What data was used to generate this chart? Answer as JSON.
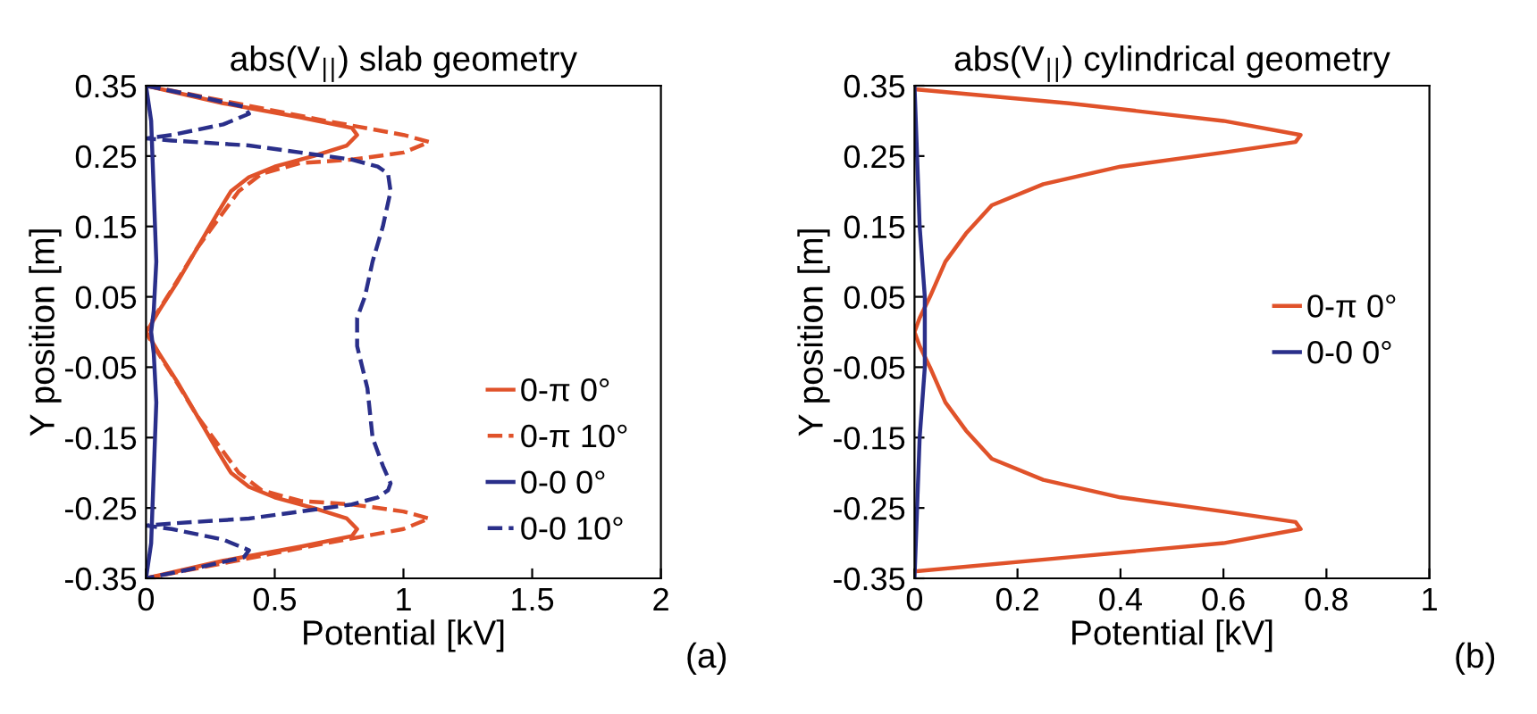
{
  "chart_data": [
    {
      "type": "line",
      "title": "abs(V$_{||}$) slab geometry",
      "xlabel": "Potential [kV]",
      "ylabel": "Y position [m]",
      "annotations": [
        "(a)"
      ],
      "xlim": [
        0,
        2
      ],
      "xticks": [
        0,
        0.5,
        1,
        1.5,
        2
      ],
      "ylim": [
        -0.35,
        0.35
      ],
      "yticks": [
        -0.35,
        -0.25,
        -0.15,
        -0.05,
        0.05,
        0.15,
        0.25,
        0.35
      ],
      "grid": false,
      "legend": "bottom right",
      "series": [
        {
          "name": "0-π 0°",
          "color": "#e0522a",
          "line_style": "solid",
          "x": [
            0,
            0.3,
            0.6,
            0.8,
            0.82,
            0.78,
            0.65,
            0.5,
            0.4,
            0.33,
            0.28,
            0.2,
            0.12,
            0.05,
            0.01,
            0,
            0.01,
            0.05,
            0.12,
            0.2,
            0.28,
            0.33,
            0.4,
            0.5,
            0.65,
            0.78,
            0.82,
            0.8,
            0.6,
            0.3,
            0
          ],
          "values": [
            0.35,
            0.325,
            0.305,
            0.29,
            0.28,
            0.265,
            0.25,
            0.235,
            0.22,
            0.2,
            0.17,
            0.12,
            0.07,
            0.03,
            0.005,
            0,
            -0.005,
            -0.03,
            -0.07,
            -0.12,
            -0.17,
            -0.2,
            -0.22,
            -0.235,
            -0.25,
            -0.265,
            -0.28,
            -0.29,
            -0.305,
            -0.325,
            -0.35
          ]
        },
        {
          "name": "0-π 10°",
          "color": "#e0522a",
          "line_style": "dashed",
          "x": [
            0,
            0.35,
            0.7,
            1.0,
            1.1,
            1.0,
            0.8,
            0.6,
            0.45,
            0.36,
            0.28,
            0.2,
            0.1,
            0.03,
            0,
            0.03,
            0.1,
            0.2,
            0.28,
            0.36,
            0.45,
            0.6,
            0.8,
            1.0,
            1.1,
            1.0,
            0.7,
            0.35,
            0
          ],
          "values": [
            0.35,
            0.325,
            0.3,
            0.28,
            0.27,
            0.255,
            0.245,
            0.24,
            0.225,
            0.2,
            0.16,
            0.12,
            0.06,
            0.02,
            0,
            -0.02,
            -0.06,
            -0.12,
            -0.16,
            -0.2,
            -0.225,
            -0.24,
            -0.245,
            -0.255,
            -0.265,
            -0.28,
            -0.3,
            -0.325,
            -0.35
          ]
        },
        {
          "name": "0-0 0°",
          "color": "#2a2f8a",
          "line_style": "solid",
          "x": [
            0,
            0.02,
            0.03,
            0.04,
            0.03,
            0.02,
            0.03,
            0.04,
            0.03,
            0.02,
            0
          ],
          "values": [
            0.35,
            0.3,
            0.2,
            0.1,
            0.03,
            0,
            -0.03,
            -0.1,
            -0.2,
            -0.3,
            -0.35
          ]
        },
        {
          "name": "0-0 10°",
          "color": "#2a2f8a",
          "line_style": "dashed",
          "x": [
            0,
            0.2,
            0.38,
            0.4,
            0.3,
            0.1,
            0,
            0.1,
            0.4,
            0.6,
            0.8,
            0.9,
            0.94,
            0.95,
            0.92,
            0.88,
            0.85,
            0.82,
            0.82,
            0.82,
            0.86,
            0.88,
            0.92,
            0.95,
            0.94,
            0.9,
            0.8,
            0.6,
            0.4,
            0.1,
            0,
            0.1,
            0.3,
            0.4,
            0.38,
            0.2,
            0
          ],
          "values": [
            0.35,
            0.335,
            0.32,
            0.31,
            0.295,
            0.28,
            0.275,
            0.272,
            0.265,
            0.255,
            0.245,
            0.235,
            0.225,
            0.2,
            0.15,
            0.1,
            0.05,
            0.02,
            0,
            -0.02,
            -0.08,
            -0.15,
            -0.19,
            -0.215,
            -0.225,
            -0.235,
            -0.245,
            -0.255,
            -0.265,
            -0.272,
            -0.275,
            -0.28,
            -0.295,
            -0.31,
            -0.32,
            -0.335,
            -0.35
          ]
        }
      ]
    },
    {
      "type": "line",
      "title": "abs(V$_{||}$) cylindrical geometry",
      "xlabel": "Potential [kV]",
      "ylabel": "Y position [m]",
      "annotations": [
        "(b)"
      ],
      "xlim": [
        0,
        1
      ],
      "xticks": [
        0,
        0.2,
        0.4,
        0.6,
        0.8,
        1
      ],
      "ylim": [
        -0.35,
        0.35
      ],
      "yticks": [
        -0.35,
        -0.25,
        -0.15,
        -0.05,
        0.05,
        0.15,
        0.25,
        0.35
      ],
      "grid": false,
      "legend": "right",
      "series": [
        {
          "name": "0-π 0°",
          "color": "#e0522a",
          "line_style": "solid",
          "x": [
            0,
            0.3,
            0.6,
            0.75,
            0.74,
            0.6,
            0.4,
            0.25,
            0.15,
            0.1,
            0.06,
            0.03,
            0.01,
            0,
            0.01,
            0.03,
            0.06,
            0.1,
            0.15,
            0.25,
            0.4,
            0.6,
            0.74,
            0.75,
            0.6,
            0.3,
            0
          ],
          "values": [
            0.345,
            0.325,
            0.3,
            0.28,
            0.27,
            0.255,
            0.235,
            0.21,
            0.18,
            0.14,
            0.1,
            0.05,
            0.02,
            0,
            -0.02,
            -0.05,
            -0.1,
            -0.14,
            -0.18,
            -0.21,
            -0.235,
            -0.255,
            -0.27,
            -0.28,
            -0.3,
            -0.32,
            -0.34
          ]
        },
        {
          "name": "0-0 0°",
          "color": "#2a2f8a",
          "line_style": "solid",
          "x": [
            0,
            0.005,
            0.01,
            0.02,
            0.02,
            0.02,
            0.01,
            0.005,
            0
          ],
          "values": [
            0.35,
            0.25,
            0.15,
            0.05,
            0,
            -0.05,
            -0.15,
            -0.25,
            -0.35
          ]
        }
      ]
    }
  ]
}
